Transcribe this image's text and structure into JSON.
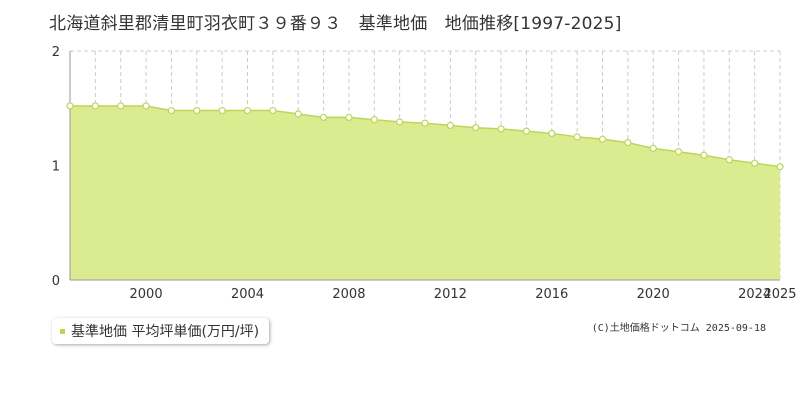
{
  "chart_data": {
    "type": "area",
    "title": "北海道斜里郡清里町羽衣町３９番９３　基準地価　地価推移[1997-2025]",
    "x": [
      1997,
      1998,
      1999,
      2000,
      2001,
      2002,
      2003,
      2004,
      2005,
      2006,
      2007,
      2008,
      2009,
      2010,
      2011,
      2012,
      2013,
      2014,
      2015,
      2016,
      2017,
      2018,
      2019,
      2020,
      2021,
      2022,
      2023,
      2024,
      2025
    ],
    "series": [
      {
        "name": "基準地価 平均坪単価(万円/坪)",
        "values": [
          1.52,
          1.52,
          1.52,
          1.52,
          1.48,
          1.48,
          1.48,
          1.48,
          1.48,
          1.45,
          1.42,
          1.42,
          1.4,
          1.38,
          1.37,
          1.35,
          1.33,
          1.32,
          1.3,
          1.28,
          1.25,
          1.23,
          1.2,
          1.15,
          1.12,
          1.09,
          1.05,
          1.02,
          0.99
        ]
      }
    ],
    "x_ticks": [
      "2000",
      "2004",
      "2008",
      "2012",
      "2016",
      "2020",
      "2024",
      "2025"
    ],
    "y_ticks": [
      "0",
      "1",
      "2"
    ],
    "xlim": [
      1997,
      2025
    ],
    "ylim": [
      0,
      2
    ],
    "grid": true,
    "legend_position": "bottom-left",
    "colors": {
      "fill": "#dbeb90",
      "line": "#bcd65a",
      "marker_fill": "#ffffff",
      "grid": "#cccccc",
      "axis": "#999999"
    }
  },
  "legend": {
    "label": "基準地価 平均坪単価(万円/坪)"
  },
  "credit": "(C)土地価格ドットコム 2025-09-18"
}
